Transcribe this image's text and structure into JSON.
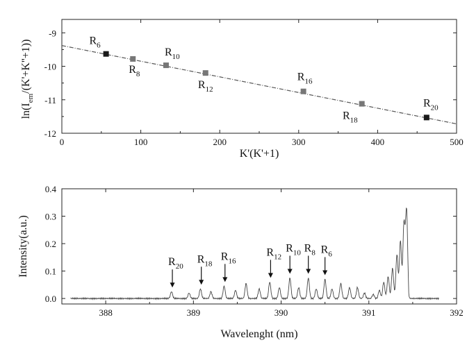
{
  "chart_data": [
    {
      "type": "scatter",
      "xlabel": "K'(K'+1)",
      "ylabel_main": "ln(I",
      "ylabel_sub": "em",
      "ylabel_tail": "/(K'+K''+1))",
      "xlim": [
        0,
        500
      ],
      "ylim": [
        -12,
        -8.6
      ],
      "xticks": [
        0,
        100,
        200,
        300,
        400,
        500
      ],
      "yticks": [
        -12,
        -11,
        -10,
        -9
      ],
      "fit_line": {
        "x": [
          0,
          500
        ],
        "y": [
          -9.38,
          -11.72
        ]
      },
      "points": [
        {
          "x": 56,
          "y": -9.63,
          "label": "R",
          "sub": "6",
          "dark": true
        },
        {
          "x": 90,
          "y": -9.78,
          "label": "R",
          "sub": "8",
          "dark": false
        },
        {
          "x": 132,
          "y": -9.97,
          "label": "R",
          "sub": "10",
          "dark": false
        },
        {
          "x": 182,
          "y": -10.2,
          "label": "R",
          "sub": "12",
          "dark": false
        },
        {
          "x": 306,
          "y": -10.75,
          "label": "R",
          "sub": "16",
          "dark": false
        },
        {
          "x": 380,
          "y": -11.12,
          "label": "R",
          "sub": "18",
          "dark": false
        },
        {
          "x": 462,
          "y": -11.53,
          "label": "R",
          "sub": "20",
          "dark": true
        }
      ]
    },
    {
      "type": "line",
      "xlabel": "Wavelenght (nm)",
      "ylabel": "Intensity(a.u.)",
      "xlim": [
        387.5,
        392
      ],
      "ylim": [
        -0.02,
        0.4
      ],
      "xticks": [
        388,
        389,
        390,
        391,
        392
      ],
      "yticks": [
        0.0,
        0.1,
        0.2,
        0.3,
        0.4
      ],
      "ytick_labels": [
        "0.0",
        "0.1",
        "0.2",
        "0.3",
        "0.4"
      ],
      "baseline": 0.0,
      "spectrum_range": [
        387.6,
        391.8
      ],
      "peaks": [
        [
          388.75,
          0.025
        ],
        [
          388.95,
          0.02
        ],
        [
          389.08,
          0.035
        ],
        [
          389.2,
          0.025
        ],
        [
          389.35,
          0.045
        ],
        [
          389.48,
          0.03
        ],
        [
          389.6,
          0.055
        ],
        [
          389.75,
          0.035
        ],
        [
          389.87,
          0.06
        ],
        [
          389.98,
          0.04
        ],
        [
          390.1,
          0.075
        ],
        [
          390.2,
          0.04
        ],
        [
          390.31,
          0.075
        ],
        [
          390.4,
          0.035
        ],
        [
          390.5,
          0.07
        ],
        [
          390.58,
          0.035
        ],
        [
          390.68,
          0.055
        ],
        [
          390.78,
          0.04
        ],
        [
          390.87,
          0.04
        ],
        [
          390.95,
          0.02
        ],
        [
          391.05,
          0.015
        ],
        [
          391.12,
          0.03
        ],
        [
          391.17,
          0.06
        ],
        [
          391.22,
          0.08
        ],
        [
          391.27,
          0.11
        ],
        [
          391.32,
          0.16
        ],
        [
          391.36,
          0.21
        ],
        [
          391.4,
          0.27
        ],
        [
          391.43,
          0.32
        ]
      ],
      "annotations": [
        {
          "label": "R",
          "sub": "20",
          "x": 388.76,
          "tip": 0.03
        },
        {
          "label": "R",
          "sub": "18",
          "x": 389.09,
          "tip": 0.04
        },
        {
          "label": "R",
          "sub": "16",
          "x": 389.36,
          "tip": 0.05
        },
        {
          "label": "R",
          "sub": "12",
          "x": 389.88,
          "tip": 0.065
        },
        {
          "label": "R",
          "sub": "10",
          "x": 390.1,
          "tip": 0.08
        },
        {
          "label": "R",
          "sub": "8",
          "x": 390.31,
          "tip": 0.08
        },
        {
          "label": "R",
          "sub": "6",
          "x": 390.5,
          "tip": 0.075
        }
      ]
    }
  ]
}
